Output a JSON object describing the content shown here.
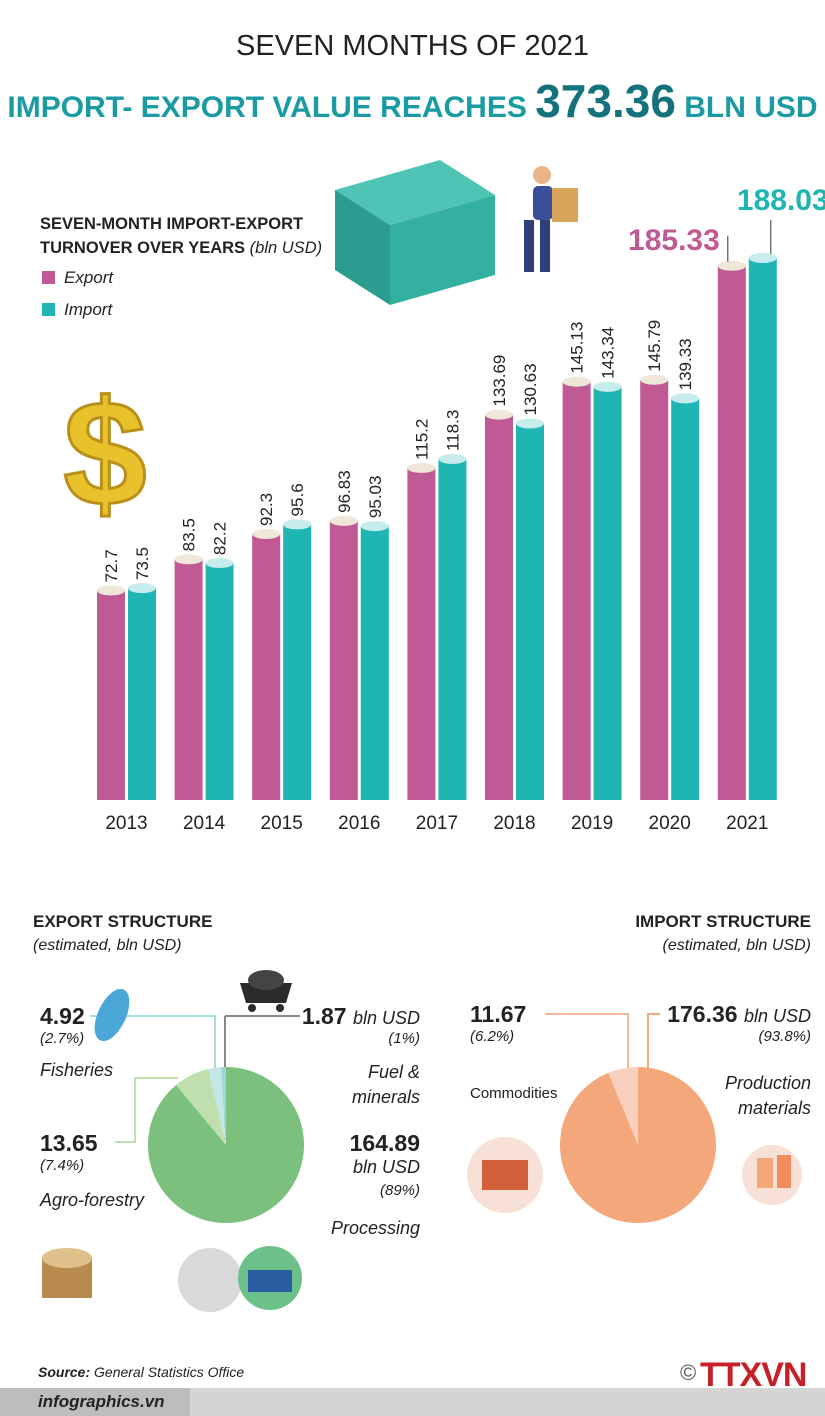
{
  "header": {
    "kicker": "SEVEN MONTHS OF 2021",
    "title": "IMPORT- EXPORT VALUE REACHES",
    "total": "373.36",
    "unit": "BLN USD"
  },
  "chart_data": [
    {
      "type": "bar",
      "title": "SEVEN-MONTH IMPORT-EXPORT TURNOVER OVER YEARS",
      "unit": "(bln USD)",
      "categories": [
        "2013",
        "2014",
        "2015",
        "2016",
        "2017",
        "2018",
        "2019",
        "2020",
        "2021"
      ],
      "series": [
        {
          "name": "Export",
          "color": "#c05a94",
          "values": [
            72.7,
            83.5,
            92.3,
            96.83,
            115.2,
            133.69,
            145.13,
            145.79,
            185.33
          ]
        },
        {
          "name": "Import",
          "color": "#1eb5b3",
          "values": [
            73.5,
            82.2,
            95.6,
            95.03,
            118.3,
            130.63,
            143.34,
            139.33,
            188.03
          ]
        }
      ]
    },
    {
      "type": "pie",
      "title": "EXPORT STRUCTURE",
      "subtitle": "(estimated, bln USD)",
      "unit": "bln USD",
      "categories": [
        "Processing",
        "Agro-forestry",
        "Fisheries",
        "Fuel & minerals"
      ],
      "values": [
        164.89,
        13.65,
        4.92,
        1.87
      ],
      "percent_labels": [
        "(89%)",
        "(7.4%)",
        "(2.7%)",
        "(1%)"
      ],
      "colors": [
        "#7cc07d",
        "#bfe0ae",
        "#c4e6e6",
        "#9fd6d6"
      ]
    },
    {
      "type": "pie",
      "title": "IMPORT STRUCTURE",
      "subtitle": "(estimated, bln USD)",
      "unit": "bln USD",
      "categories": [
        "Production materials",
        "Commodities"
      ],
      "values": [
        176.36,
        11.67
      ],
      "percent_labels": [
        "(93.8%)",
        "(6.2%)"
      ],
      "colors": [
        "#f5a77c",
        "#f9d0bd"
      ]
    }
  ],
  "footer": {
    "source_label": "Source:",
    "source": "General Statistics Office",
    "site": "infographics.vn",
    "logo": "TTXVN"
  }
}
